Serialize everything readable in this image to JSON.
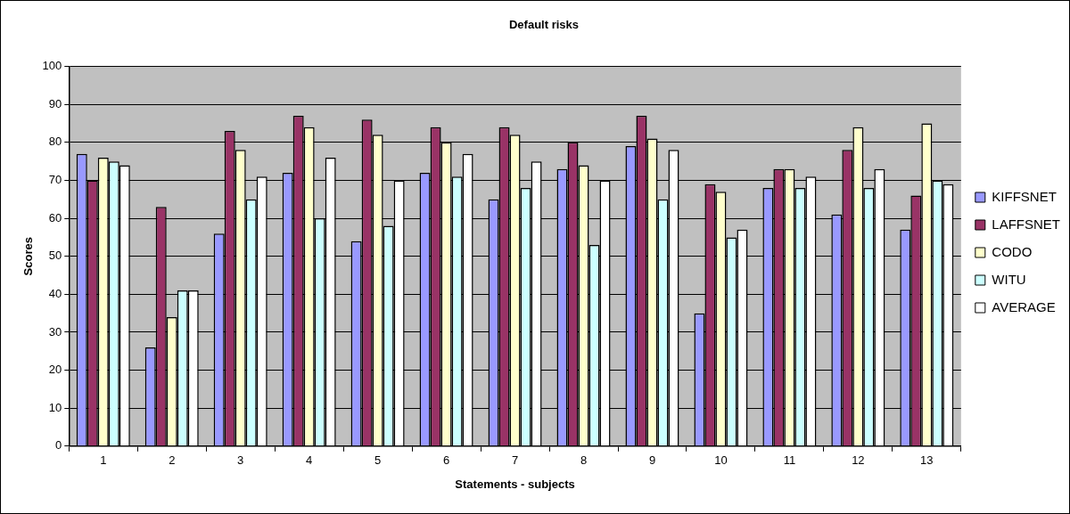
{
  "chart_data": {
    "type": "bar",
    "title": "Default risks",
    "xlabel": "Statements - subjects",
    "ylabel": "Scores",
    "categories": [
      "1",
      "2",
      "3",
      "4",
      "5",
      "6",
      "7",
      "8",
      "9",
      "10",
      "11",
      "12",
      "13"
    ],
    "series": [
      {
        "name": "KIFFSNET",
        "color": "#9999ff",
        "values": [
          77,
          26,
          56,
          72,
          54,
          72,
          65,
          73,
          79,
          35,
          68,
          61,
          57
        ]
      },
      {
        "name": "LAFFSNET",
        "color": "#993366",
        "values": [
          70,
          63,
          83,
          87,
          86,
          84,
          84,
          80,
          87,
          69,
          73,
          78,
          66
        ]
      },
      {
        "name": "CODO",
        "color": "#ffffcc",
        "values": [
          76,
          34,
          78,
          84,
          82,
          80,
          82,
          74,
          81,
          67,
          73,
          84,
          85
        ]
      },
      {
        "name": "WITU",
        "color": "#ccffff",
        "values": [
          75,
          41,
          65,
          60,
          58,
          71,
          68,
          53,
          65,
          55,
          68,
          68,
          70
        ]
      },
      {
        "name": "AVERAGE",
        "color": "#ffffff",
        "values": [
          74,
          41,
          71,
          76,
          70,
          77,
          75,
          70,
          78,
          57,
          71,
          73,
          69
        ]
      }
    ],
    "ylim": [
      0,
      100
    ],
    "yticks": [
      0,
      10,
      20,
      30,
      40,
      50,
      60,
      70,
      80,
      90,
      100
    ],
    "grid": "y",
    "legend": "right"
  }
}
